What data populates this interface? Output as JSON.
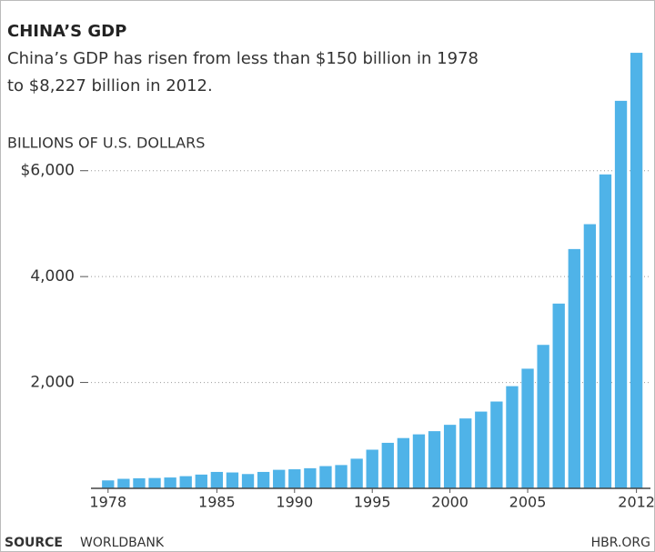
{
  "chart_data": {
    "type": "bar",
    "title": "CHINA’S GDP",
    "subtitle_lines": [
      "China’s GDP has risen from less than $150 billion in 1978",
      "to $8,227 billion in 2012."
    ],
    "y_label": "BILLIONS OF U.S. DOLLARS",
    "x": [
      1978,
      1979,
      1980,
      1981,
      1982,
      1983,
      1984,
      1985,
      1986,
      1987,
      1988,
      1989,
      1990,
      1991,
      1992,
      1993,
      1994,
      1995,
      1996,
      1997,
      1998,
      1999,
      2000,
      2001,
      2002,
      2003,
      2004,
      2005,
      2006,
      2007,
      2008,
      2009,
      2010,
      2011,
      2012
    ],
    "values": [
      150,
      180,
      190,
      195,
      205,
      230,
      260,
      310,
      300,
      270,
      310,
      350,
      360,
      380,
      420,
      440,
      560,
      730,
      860,
      950,
      1020,
      1080,
      1200,
      1320,
      1450,
      1640,
      1930,
      2260,
      2710,
      3490,
      4520,
      4990,
      5930,
      7320,
      8227
    ],
    "color": "#4fb3e8",
    "xlim": [
      1976.9,
      2012.9
    ],
    "xticks": [
      1978,
      1985,
      1990,
      1995,
      2000,
      2005,
      2012
    ],
    "ylim": [
      0,
      8400
    ],
    "yticks": [
      {
        "value": 2000,
        "label": "2,000"
      },
      {
        "value": 4000,
        "label": "4,000"
      },
      {
        "value": 6000,
        "label": "$6,000"
      }
    ],
    "grid": true,
    "source_label": "SOURCE",
    "source": "WORLDBANK",
    "credit": "HBR.ORG"
  }
}
